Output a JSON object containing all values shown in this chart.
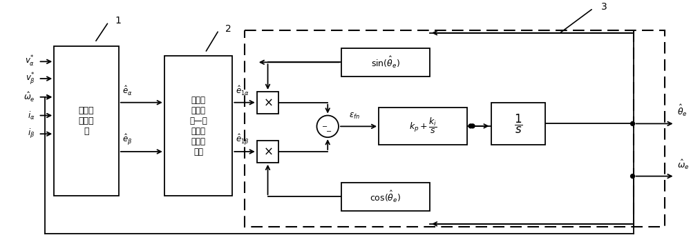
{
  "bg_color": "#ffffff",
  "line_color": "#000000",
  "fig_width": 10.0,
  "fig_height": 3.54,
  "dpi": 100,
  "inputs": [
    "$v_{\\alpha}^{*}$",
    "$v_{\\beta}^{*}$",
    "$\\hat{\\omega}_{e}$",
    "$i_{\\alpha}$",
    "$i_{\\beta}$"
  ],
  "block1_text": "反电动\n势估测\n器",
  "block1_label": "1",
  "block2_text": "二阶广\n义积分\n器—多\n指定谐\n波消除\n装置",
  "block2_label": "2",
  "block3_label": "3",
  "sin_text": "$\\sin(\\hat{\\theta}_{e})$",
  "cos_text": "$\\cos(\\hat{\\theta}_{e})$",
  "pi_text": "$k_{p}+\\dfrac{k_{i}}{s}$",
  "int_text": "$\\dfrac{1}{s}$",
  "output1_text": "$\\hat{\\theta}_{e}$",
  "output2_text": "$\\hat{\\omega}_{e}$",
  "ea_text": "$\\hat{e}_{\\alpha}$",
  "eb_text": "$\\hat{e}_{\\beta}$",
  "e1a_text": "$\\hat{e}_{1\\alpha}$",
  "e1b_text": "$\\hat{e}_{1\\beta}$",
  "eps_text": "$\\varepsilon_{fn}$"
}
